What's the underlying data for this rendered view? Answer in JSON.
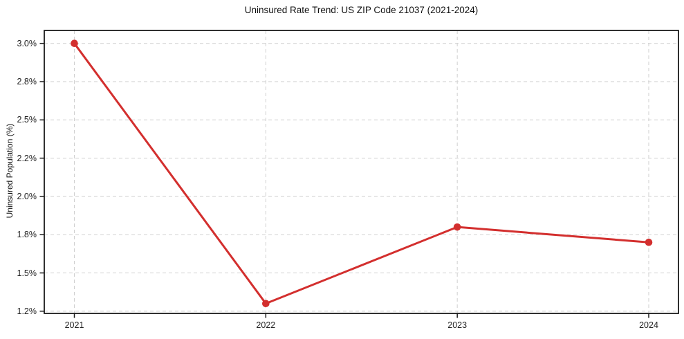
{
  "chart_data": {
    "type": "line",
    "title": "Uninsured Rate Trend: US ZIP Code 21037 (2021-2024)",
    "xlabel": "",
    "ylabel": "Uninsured Population (%)",
    "x": [
      2021,
      2022,
      2023,
      2024
    ],
    "xtick_labels": [
      "2021",
      "2022",
      "2023",
      "2024"
    ],
    "ytick_labels": [
      "1.2%",
      "1.5%",
      "1.8%",
      "2.0%",
      "2.2%",
      "2.5%",
      "2.8%",
      "3.0%"
    ],
    "ytick_values": [
      1.2,
      1.5,
      1.8,
      2.0,
      2.2,
      2.5,
      2.8,
      3.0
    ],
    "series": [
      {
        "name": "Uninsured rate",
        "values": [
          3.0,
          1.26,
          1.84,
          1.74
        ]
      }
    ],
    "ylim": [
      1.2,
      3.0
    ],
    "grid": true,
    "grid_style": "dashed",
    "legend": "none",
    "colors": {
      "line": "#d32f2e",
      "marker": "#d32f2e",
      "gridline": "#cfcfcf",
      "spine": "#1a1a1a",
      "tick_text": "#222222",
      "background": "#ffffff"
    }
  }
}
